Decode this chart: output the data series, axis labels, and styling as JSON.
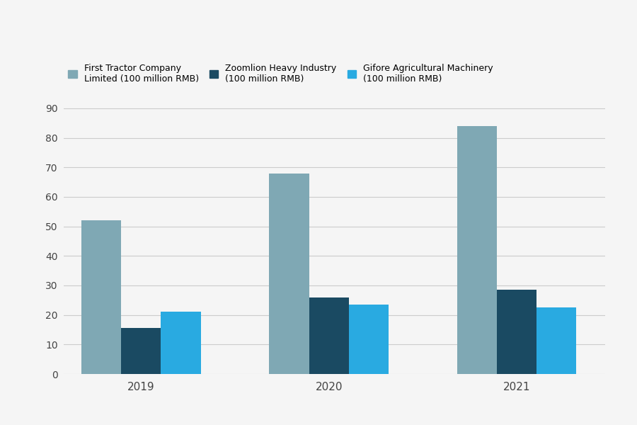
{
  "years": [
    "2019",
    "2020",
    "2021"
  ],
  "series": [
    {
      "label": "First Tractor Company\nLimited (100 million RMB)",
      "values": [
        52,
        68,
        84
      ],
      "color": "#7fa8b4"
    },
    {
      "label": "Zoomlion Heavy Industry\n(100 million RMB)",
      "values": [
        15.5,
        26,
        28.5
      ],
      "color": "#1a4a62"
    },
    {
      "label": "Gifore Agricultural Machinery\n(100 million RMB)",
      "values": [
        21,
        23.5,
        22.5
      ],
      "color": "#29aae1"
    }
  ],
  "ylim": [
    0,
    95
  ],
  "yticks": [
    0,
    10,
    20,
    30,
    40,
    50,
    60,
    70,
    80,
    90
  ],
  "background_color": "#f5f5f5",
  "grid_color": "#cccccc",
  "bar_width": 0.18,
  "group_positions": [
    0.35,
    1.2,
    2.05
  ]
}
